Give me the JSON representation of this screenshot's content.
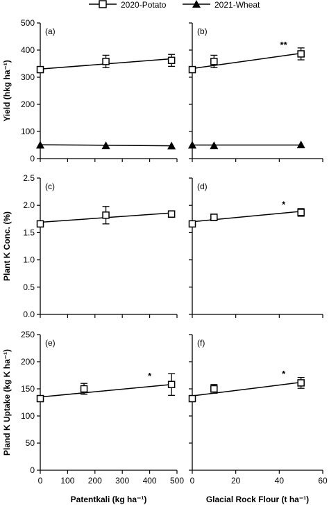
{
  "legend": [
    {
      "label": "2020-Potato",
      "marker": "open-square"
    },
    {
      "label": "2021-Wheat",
      "marker": "filled-triangle"
    }
  ],
  "colors": {
    "ink": "#000000",
    "background": "#ffffff"
  },
  "chart_data": [
    {
      "type": "scatter",
      "panel": "(a)",
      "ylabel": "Yield (hkg ha⁻¹)",
      "xlim": [
        0,
        500
      ],
      "ylim": [
        0,
        500
      ],
      "yticks": [
        0,
        100,
        200,
        300,
        400,
        500
      ],
      "series": [
        {
          "name": "2020-Potato",
          "x": [
            0,
            240,
            480
          ],
          "y": [
            328,
            358,
            362
          ],
          "err": [
            10,
            23,
            22
          ],
          "fit": [
            [
              0,
              330
            ],
            [
              480,
              368
            ]
          ]
        },
        {
          "name": "2021-Wheat",
          "x": [
            0,
            240,
            480
          ],
          "y": [
            50,
            48,
            47
          ],
          "err": [
            0,
            0,
            0
          ],
          "fit": [
            [
              0,
              51
            ],
            [
              480,
              47
            ]
          ]
        }
      ],
      "annotations": []
    },
    {
      "type": "scatter",
      "panel": "(b)",
      "xlim": [
        0,
        60
      ],
      "ylim": [
        0,
        500
      ],
      "series": [
        {
          "name": "2020-Potato",
          "x": [
            0,
            10,
            50
          ],
          "y": [
            328,
            358,
            386
          ],
          "err": [
            10,
            23,
            22
          ],
          "fit": [
            [
              0,
              332
            ],
            [
              50,
              388
            ]
          ]
        },
        {
          "name": "2021-Wheat",
          "x": [
            0,
            10,
            50
          ],
          "y": [
            50,
            48,
            51
          ],
          "err": [
            0,
            0,
            0
          ],
          "fit": [
            [
              0,
              50
            ],
            [
              50,
              50
            ]
          ]
        }
      ],
      "annotations": [
        {
          "text": "**",
          "x": 42,
          "y": 408
        }
      ]
    },
    {
      "type": "scatter",
      "panel": "(c)",
      "ylabel": "Plant K Conc. (%)",
      "xlim": [
        0,
        500
      ],
      "ylim": [
        0,
        2.5
      ],
      "yticks": [
        "0.0",
        "0.5",
        "1.0",
        "1.5",
        "2.0",
        "2.5"
      ],
      "series": [
        {
          "name": "2020-Potato",
          "x": [
            0,
            240,
            480
          ],
          "y": [
            1.66,
            1.82,
            1.84
          ],
          "err": [
            0.05,
            0.16,
            0.06
          ],
          "fit": [
            [
              0,
              1.69
            ],
            [
              480,
              1.86
            ]
          ]
        }
      ],
      "annotations": []
    },
    {
      "type": "scatter",
      "panel": "(d)",
      "xlim": [
        0,
        60
      ],
      "ylim": [
        0,
        2.5
      ],
      "series": [
        {
          "name": "2020-Potato",
          "x": [
            0,
            10,
            50
          ],
          "y": [
            1.66,
            1.78,
            1.87
          ],
          "err": [
            0.05,
            0.06,
            0.07
          ],
          "fit": [
            [
              0,
              1.7
            ],
            [
              50,
              1.89
            ]
          ]
        }
      ],
      "annotations": [
        {
          "text": "*",
          "x": 42,
          "y": 1.96
        }
      ]
    },
    {
      "type": "scatter",
      "panel": "(e)",
      "ylabel": "Pland K Uptake (kg K ha⁻¹)",
      "xlabel": "Patentkali (kg ha⁻¹)",
      "xlim": [
        0,
        500
      ],
      "ylim": [
        0,
        250
      ],
      "xticks": [
        0,
        100,
        200,
        300,
        400,
        500
      ],
      "yticks": [
        0,
        50,
        100,
        150,
        200,
        250
      ],
      "series": [
        {
          "name": "2020-Potato",
          "x": [
            0,
            160,
            480
          ],
          "y": [
            132,
            150,
            158
          ],
          "err": [
            3,
            10,
            20
          ],
          "fit": [
            [
              0,
              135
            ],
            [
              480,
              158
            ]
          ]
        }
      ],
      "annotations": [
        {
          "text": "*",
          "x": 400,
          "y": 168
        }
      ]
    },
    {
      "type": "scatter",
      "panel": "(f)",
      "xlabel": "Glacial Rock Flour (t ha⁻¹)",
      "xlim": [
        0,
        60
      ],
      "ylim": [
        0,
        250
      ],
      "xticks": [
        0,
        20,
        40,
        60
      ],
      "series": [
        {
          "name": "2020-Potato",
          "x": [
            0,
            10,
            50
          ],
          "y": [
            132,
            150,
            161
          ],
          "err": [
            3,
            8,
            10
          ],
          "fit": [
            [
              0,
              137
            ],
            [
              50,
              162
            ]
          ]
        }
      ],
      "annotations": [
        {
          "text": "*",
          "x": 42,
          "y": 172
        }
      ]
    }
  ]
}
